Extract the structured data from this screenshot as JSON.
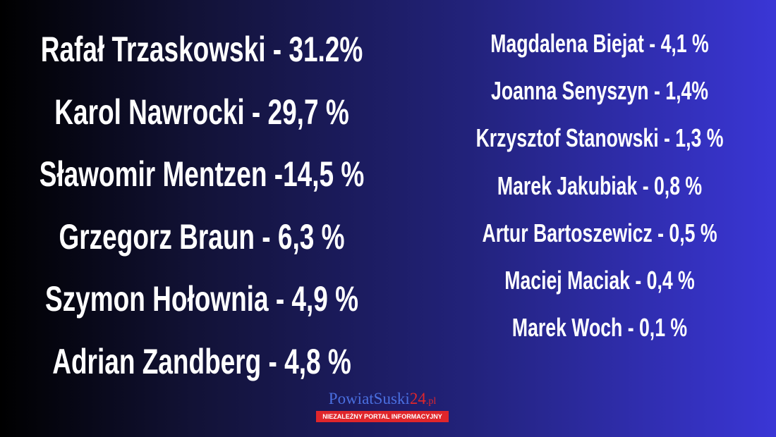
{
  "left": [
    "Rafał Trzaskowski - 31.2%",
    "Karol Nawrocki - 29,7 %",
    "Sławomir Mentzen -14,5 %",
    "Grzegorz Braun - 6,3 %",
    "Szymon Hołownia - 4,9 %",
    "Adrian Zandberg - 4,8 %"
  ],
  "right": [
    "Magdalena Biejat - 4,1 %",
    "Joanna Senyszyn - 1,4%",
    "Krzysztof Stanowski - 1,3 %",
    "Marek Jakubiak - 0,8 %",
    "Artur Bartoszewicz - 0,5 %",
    "Maciej Maciak - 0,4 %",
    "Marek Woch - 0,1 %"
  ],
  "logo": {
    "name": "PowiatSuski",
    "number": "24",
    "domain": ".pl",
    "tagline": "NIEZALEŻNY PORTAL INFORMACYJNY"
  }
}
